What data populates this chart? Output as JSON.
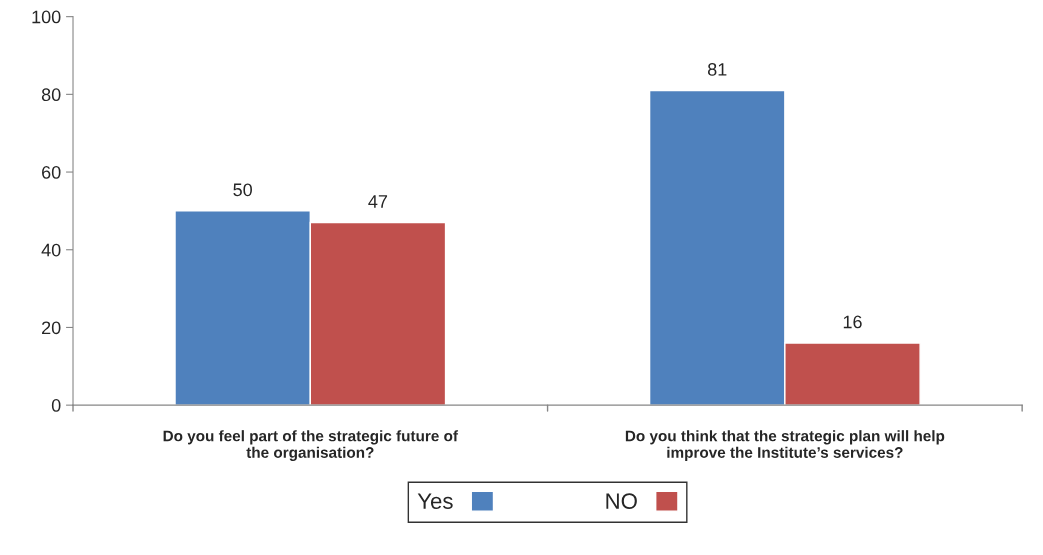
{
  "chart_data": {
    "type": "bar",
    "categories": [
      "Do you feel part of the strategic future of\nthe organisation?",
      "Do you think that the strategic plan will help\nimprove the Institute’s services?"
    ],
    "series": [
      {
        "name": "Yes",
        "color": "#4f81bd",
        "values": [
          50,
          81
        ]
      },
      {
        "name": "NO",
        "color": "#c0504d",
        "values": [
          47,
          16
        ]
      }
    ],
    "ylim": [
      0,
      100
    ],
    "yticks": [
      0,
      20,
      40,
      60,
      80,
      100
    ],
    "grid": false,
    "legend": "bottom",
    "data_labels": true
  }
}
